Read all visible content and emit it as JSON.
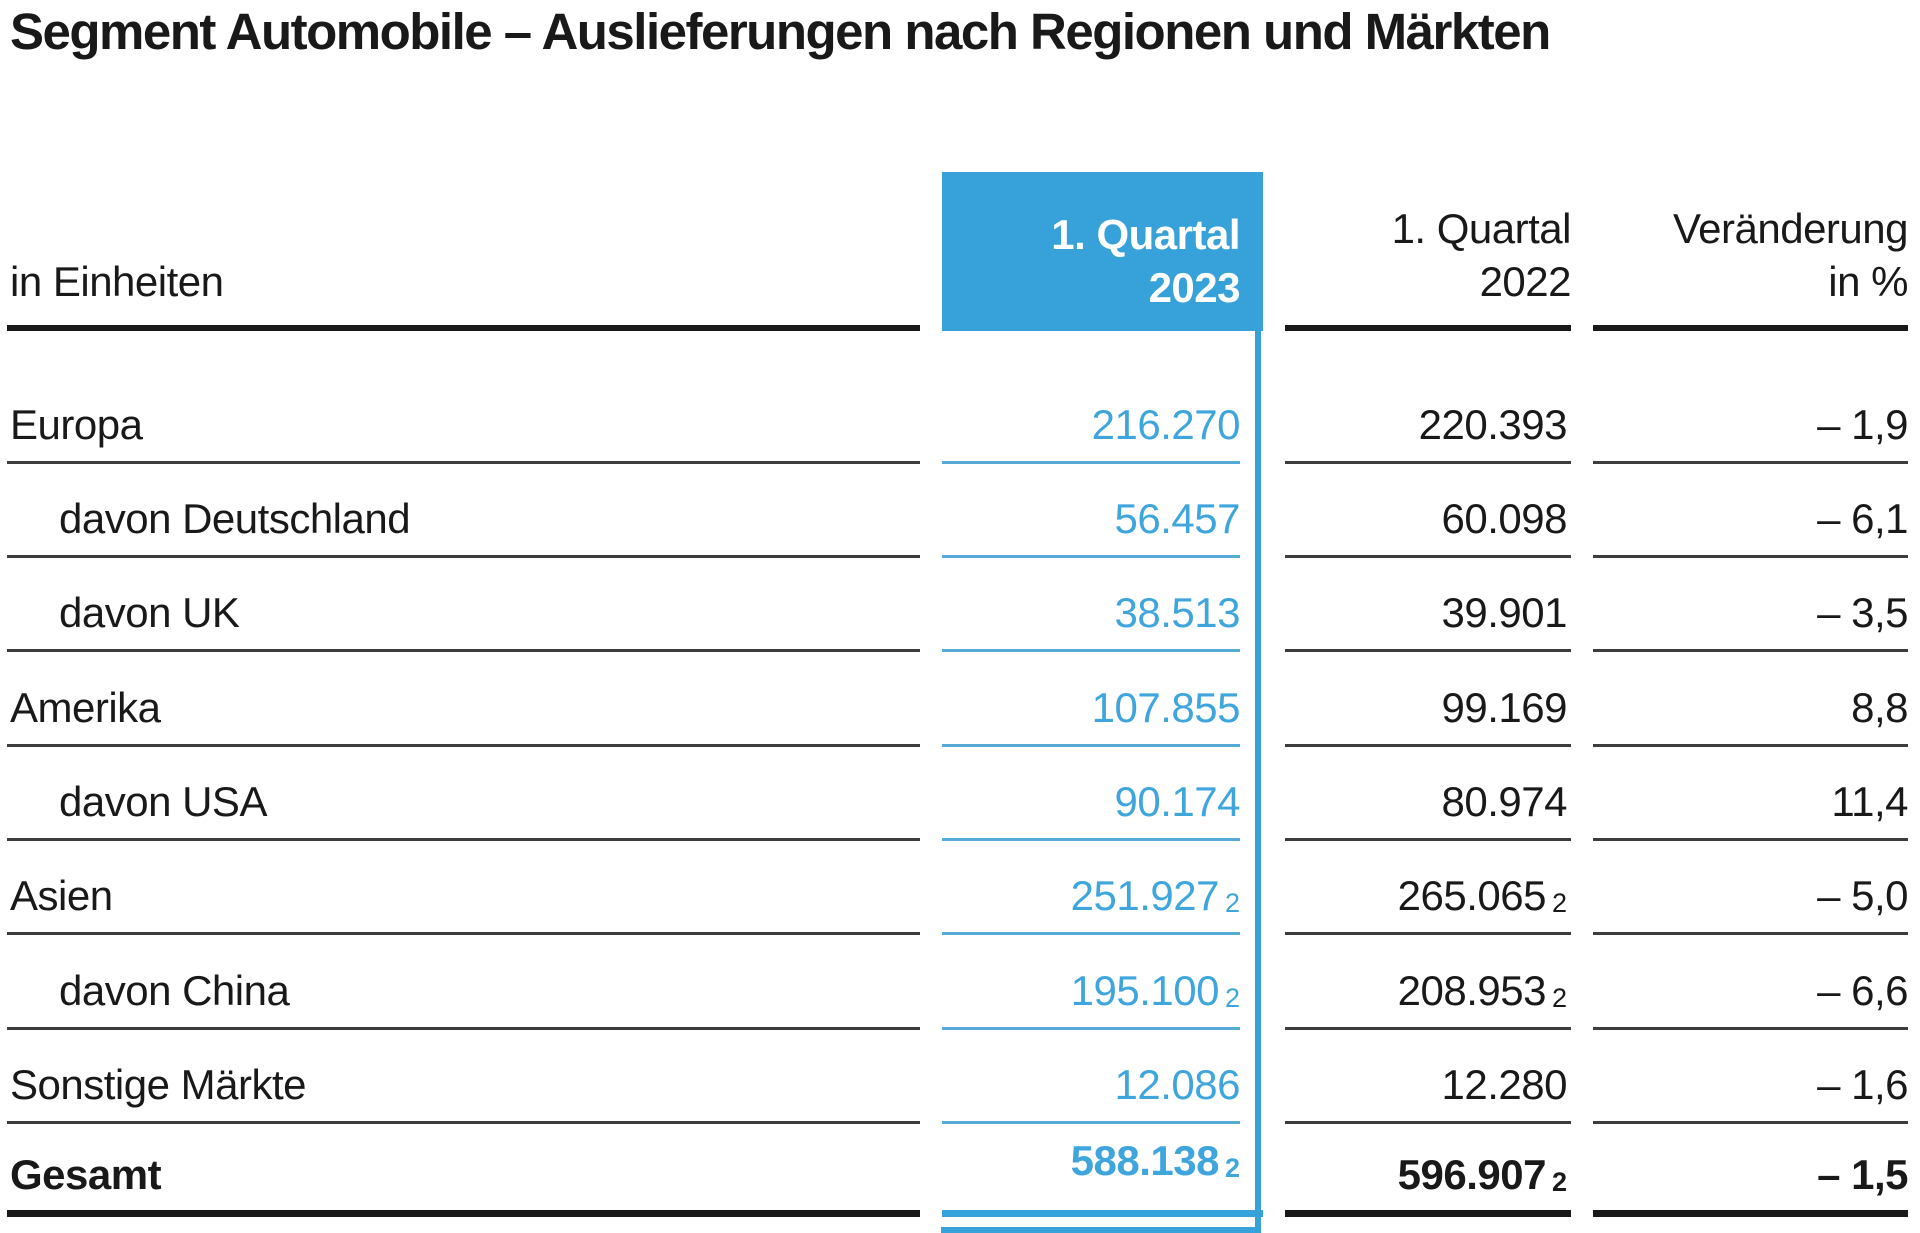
{
  "title": "Segment Automobile – Auslieferungen nach Regionen und Märkten",
  "colors": {
    "accent_blue": "#36a2d9",
    "accent_blue_text": "#3fa6dd",
    "accent_blue_thin_rule": "#55aad8",
    "rule_black": "#191919",
    "row_rule_gray": "#3c3c3c",
    "text": "#191919",
    "header_text_on_blue": "#ffffff",
    "background": "#ffffff"
  },
  "table": {
    "unit_label": "in Einheiten",
    "footnote_marker": "2",
    "columns": [
      {
        "line1": "1. Quartal",
        "line2": "2023",
        "highlighted": true
      },
      {
        "line1": "1. Quartal",
        "line2": "2022",
        "highlighted": false
      },
      {
        "line1": "Veränderung",
        "line2": "in %",
        "highlighted": false
      }
    ],
    "rows": [
      {
        "label": "Europa",
        "q1_2023": "216.270",
        "sup_2023": "",
        "q1_2022": "220.393",
        "sup_2022": "",
        "change": "– 1,9"
      },
      {
        "label": "davon Deutschland",
        "q1_2023": "56.457",
        "sup_2023": "",
        "q1_2022": "60.098",
        "sup_2022": "",
        "change": "– 6,1"
      },
      {
        "label": "davon UK",
        "q1_2023": "38.513",
        "sup_2023": "",
        "q1_2022": "39.901",
        "sup_2022": "",
        "change": "– 3,5"
      },
      {
        "label": "Amerika",
        "q1_2023": "107.855",
        "sup_2023": "",
        "q1_2022": "99.169",
        "sup_2022": "",
        "change": "8,8"
      },
      {
        "label": "davon USA",
        "q1_2023": "90.174",
        "sup_2023": "",
        "q1_2022": "80.974",
        "sup_2022": "",
        "change": "11,4"
      },
      {
        "label": "Asien",
        "q1_2023": "251.927",
        "sup_2023": "2",
        "q1_2022": "265.065",
        "sup_2022": "2",
        "change": "– 5,0"
      },
      {
        "label": "davon China",
        "q1_2023": "195.100",
        "sup_2023": "2",
        "q1_2022": "208.953",
        "sup_2022": "2",
        "change": "– 6,6"
      },
      {
        "label": "Sonstige Märkte",
        "q1_2023": "12.086",
        "sup_2023": "",
        "q1_2022": "12.280",
        "sup_2022": "",
        "change": "– 1,6"
      },
      {
        "label": "Gesamt",
        "q1_2023": "588.138",
        "sup_2023": "2",
        "q1_2022": "596.907",
        "sup_2022": "2",
        "change": "– 1,5"
      }
    ]
  },
  "chart_data": {
    "type": "table",
    "title": "Segment Automobile – Auslieferungen nach Regionen und Märkten",
    "unit": "in Einheiten",
    "columns": [
      "1. Quartal 2023",
      "1. Quartal 2022",
      "Veränderung in %"
    ],
    "rows": [
      {
        "label": "Europa",
        "q1_2023": 216270,
        "q1_2022": 220393,
        "change_pct": -1.9,
        "footnote": false
      },
      {
        "label": "davon Deutschland",
        "q1_2023": 56457,
        "q1_2022": 60098,
        "change_pct": -6.1,
        "footnote": false
      },
      {
        "label": "davon UK",
        "q1_2023": 38513,
        "q1_2022": 39901,
        "change_pct": -3.5,
        "footnote": false
      },
      {
        "label": "Amerika",
        "q1_2023": 107855,
        "q1_2022": 99169,
        "change_pct": 8.8,
        "footnote": false
      },
      {
        "label": "davon USA",
        "q1_2023": 90174,
        "q1_2022": 80974,
        "change_pct": 11.4,
        "footnote": false
      },
      {
        "label": "Asien",
        "q1_2023": 251927,
        "q1_2022": 265065,
        "change_pct": -5.0,
        "footnote": true
      },
      {
        "label": "davon China",
        "q1_2023": 195100,
        "q1_2022": 208953,
        "change_pct": -6.6,
        "footnote": true
      },
      {
        "label": "Sonstige Märkte",
        "q1_2023": 12086,
        "q1_2022": 12280,
        "change_pct": -1.6,
        "footnote": false
      },
      {
        "label": "Gesamt",
        "q1_2023": 588138,
        "q1_2022": 596907,
        "change_pct": -1.5,
        "footnote": true
      }
    ]
  }
}
